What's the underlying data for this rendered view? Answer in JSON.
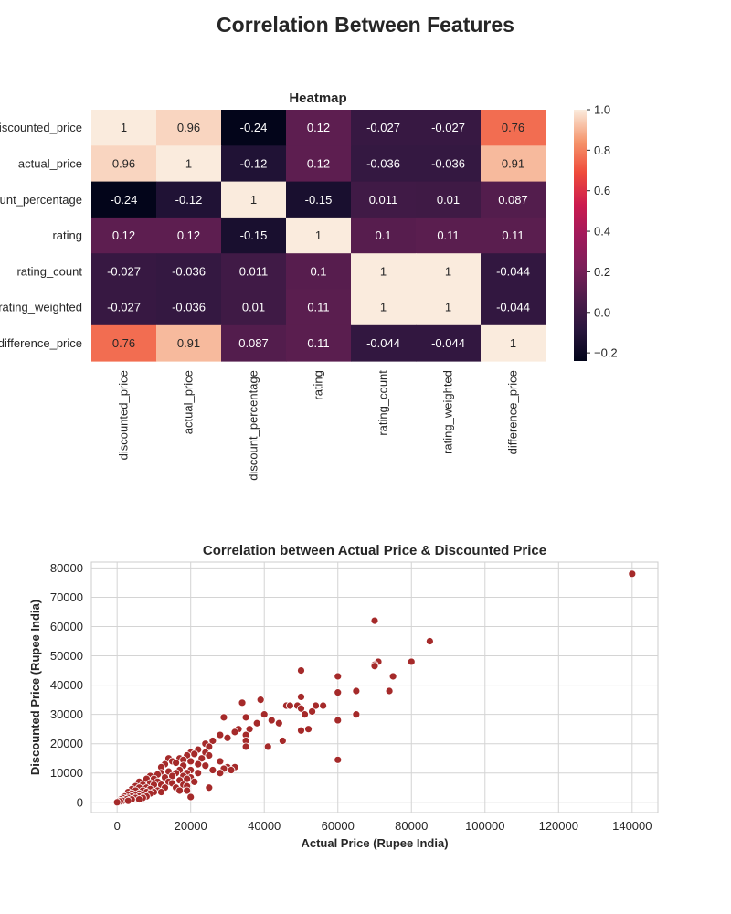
{
  "figure_title": "Correlation Between Features",
  "chart_data": [
    {
      "type": "heatmap",
      "title": "Heatmap",
      "row_labels": [
        "discounted_price",
        "actual_price",
        "discount_percentage",
        "rating",
        "rating_count",
        "rating_weighted",
        "difference_price"
      ],
      "col_labels": [
        "discounted_price",
        "actual_price",
        "discount_percentage",
        "rating",
        "rating_count",
        "rating_weighted",
        "difference_price"
      ],
      "values": [
        [
          1,
          0.96,
          -0.24,
          0.12,
          -0.027,
          -0.027,
          0.76
        ],
        [
          0.96,
          1,
          -0.12,
          0.12,
          -0.036,
          -0.036,
          0.91
        ],
        [
          -0.24,
          -0.12,
          1,
          -0.15,
          0.011,
          0.01,
          0.087
        ],
        [
          0.12,
          0.12,
          -0.15,
          1,
          0.1,
          0.11,
          0.11
        ],
        [
          -0.027,
          -0.036,
          0.011,
          0.1,
          1,
          1,
          -0.044
        ],
        [
          -0.027,
          -0.036,
          0.01,
          0.11,
          1,
          1,
          -0.044
        ],
        [
          0.76,
          0.91,
          0.087,
          0.11,
          -0.044,
          -0.044,
          1
        ]
      ],
      "value_labels": [
        [
          "1",
          "0.96",
          "-0.24",
          "0.12",
          "-0.027",
          "-0.027",
          "0.76"
        ],
        [
          "0.96",
          "1",
          "-0.12",
          "0.12",
          "-0.036",
          "-0.036",
          "0.91"
        ],
        [
          "-0.24",
          "-0.12",
          "1",
          "-0.15",
          "0.011",
          "0.01",
          "0.087"
        ],
        [
          "0.12",
          "0.12",
          "-0.15",
          "1",
          "0.1",
          "0.11",
          "0.11"
        ],
        [
          "-0.027",
          "-0.036",
          "0.011",
          "0.1",
          "1",
          "1",
          "-0.044"
        ],
        [
          "-0.027",
          "-0.036",
          "0.01",
          "0.11",
          "1",
          "1",
          "-0.044"
        ],
        [
          "0.76",
          "0.91",
          "0.087",
          "0.11",
          "-0.044",
          "-0.044",
          "1"
        ]
      ],
      "colorbar": {
        "min": -0.24,
        "max": 1.0,
        "ticks": [
          1.0,
          0.8,
          0.6,
          0.4,
          0.2,
          0.0,
          -0.2
        ],
        "tick_labels": [
          "1.0",
          "0.8",
          "0.6",
          "0.4",
          "0.2",
          "0.0",
          "−0.2"
        ],
        "colormap": "rocket"
      }
    },
    {
      "type": "scatter",
      "title": "Correlation between Actual Price & Discounted Price",
      "xlabel": "Actual Price (Rupee India)",
      "ylabel": "Discounted Price (Rupee India)",
      "xlim": [
        -7000,
        147000
      ],
      "ylim": [
        -3500,
        82000
      ],
      "xticks": [
        0,
        20000,
        40000,
        60000,
        80000,
        100000,
        120000,
        140000
      ],
      "yticks": [
        0,
        10000,
        20000,
        30000,
        40000,
        50000,
        60000,
        70000,
        80000
      ],
      "grid": true,
      "marker_color": "#a52a2a",
      "points": [
        [
          140000,
          78000
        ],
        [
          70000,
          62000
        ],
        [
          85000,
          55000
        ],
        [
          71000,
          48000
        ],
        [
          80000,
          48000
        ],
        [
          70000,
          47000
        ],
        [
          70000,
          46500
        ],
        [
          50000,
          45000
        ],
        [
          75000,
          43000
        ],
        [
          60000,
          43000
        ],
        [
          65000,
          38000
        ],
        [
          74000,
          38000
        ],
        [
          60000,
          37500
        ],
        [
          50000,
          36000
        ],
        [
          39000,
          35000
        ],
        [
          34000,
          34000
        ],
        [
          46000,
          33000
        ],
        [
          49000,
          33000
        ],
        [
          54000,
          33000
        ],
        [
          56000,
          33000
        ],
        [
          47000,
          33000
        ],
        [
          50000,
          32000
        ],
        [
          53000,
          31000
        ],
        [
          40000,
          30000
        ],
        [
          65000,
          30000
        ],
        [
          51000,
          30000
        ],
        [
          29000,
          29000
        ],
        [
          35000,
          29000
        ],
        [
          42000,
          28000
        ],
        [
          38000,
          27000
        ],
        [
          44000,
          27000
        ],
        [
          60000,
          28000
        ],
        [
          33000,
          25000
        ],
        [
          36000,
          25000
        ],
        [
          52000,
          25000
        ],
        [
          50000,
          24500
        ],
        [
          32000,
          24000
        ],
        [
          35000,
          23000
        ],
        [
          28000,
          23000
        ],
        [
          30000,
          22000
        ],
        [
          45000,
          21000
        ],
        [
          35000,
          21000
        ],
        [
          26000,
          21000
        ],
        [
          24000,
          20000
        ],
        [
          25000,
          19000
        ],
        [
          35000,
          19000
        ],
        [
          41000,
          19000
        ],
        [
          22000,
          18000
        ],
        [
          24000,
          17000
        ],
        [
          20000,
          17000
        ],
        [
          21000,
          16500
        ],
        [
          19000,
          16000
        ],
        [
          25000,
          16000
        ],
        [
          23000,
          15000
        ],
        [
          17000,
          15000
        ],
        [
          14000,
          15000
        ],
        [
          18000,
          14500
        ],
        [
          20000,
          14000
        ],
        [
          60000,
          14500
        ],
        [
          15000,
          14000
        ],
        [
          16000,
          13500
        ],
        [
          28000,
          14000
        ],
        [
          22000,
          13000
        ],
        [
          13000,
          13000
        ],
        [
          18000,
          12500
        ],
        [
          24000,
          12500
        ],
        [
          30000,
          12000
        ],
        [
          32000,
          12000
        ],
        [
          29000,
          11500
        ],
        [
          12000,
          12000
        ],
        [
          26000,
          11000
        ],
        [
          31000,
          11000
        ],
        [
          17000,
          11000
        ],
        [
          20000,
          11000
        ],
        [
          14000,
          10500
        ],
        [
          16000,
          10000
        ],
        [
          19000,
          10000
        ],
        [
          28000,
          10000
        ],
        [
          12000,
          10000
        ],
        [
          22000,
          10000
        ],
        [
          11000,
          9500
        ],
        [
          18000,
          9000
        ],
        [
          15000,
          9000
        ],
        [
          9000,
          9000
        ],
        [
          20000,
          8500
        ],
        [
          13000,
          8500
        ],
        [
          19000,
          8000
        ],
        [
          10000,
          8000
        ],
        [
          8000,
          8000
        ],
        [
          17000,
          7500
        ],
        [
          14000,
          7000
        ],
        [
          21000,
          7000
        ],
        [
          6000,
          7000
        ],
        [
          11000,
          7000
        ],
        [
          9000,
          6500
        ],
        [
          15000,
          6500
        ],
        [
          18000,
          6000
        ],
        [
          7000,
          6000
        ],
        [
          12000,
          6000
        ],
        [
          10000,
          6000
        ],
        [
          19000,
          5500
        ],
        [
          5000,
          5500
        ],
        [
          8000,
          5000
        ],
        [
          25000,
          5000
        ],
        [
          6000,
          5000
        ],
        [
          13000,
          5000
        ],
        [
          16000,
          5000
        ],
        [
          4000,
          4500
        ],
        [
          9000,
          4500
        ],
        [
          7000,
          4000
        ],
        [
          11000,
          4000
        ],
        [
          17000,
          4000
        ],
        [
          19000,
          4000
        ],
        [
          5000,
          4000
        ],
        [
          3000,
          3500
        ],
        [
          8000,
          3500
        ],
        [
          10000,
          3500
        ],
        [
          12000,
          3500
        ],
        [
          6000,
          3000
        ],
        [
          4000,
          3000
        ],
        [
          9000,
          3000
        ],
        [
          7000,
          2500
        ],
        [
          3000,
          2500
        ],
        [
          5000,
          2500
        ],
        [
          8000,
          2000
        ],
        [
          20000,
          1800
        ],
        [
          2000,
          2000
        ],
        [
          4000,
          2000
        ],
        [
          6000,
          2000
        ],
        [
          1500,
          1500
        ],
        [
          3000,
          1500
        ],
        [
          5000,
          1500
        ],
        [
          7000,
          1500
        ],
        [
          1000,
          1000
        ],
        [
          2500,
          1000
        ],
        [
          4000,
          1000
        ],
        [
          6000,
          1000
        ],
        [
          500,
          500
        ],
        [
          1500,
          500
        ],
        [
          3000,
          500
        ],
        [
          800,
          300
        ],
        [
          0,
          0
        ]
      ]
    }
  ]
}
